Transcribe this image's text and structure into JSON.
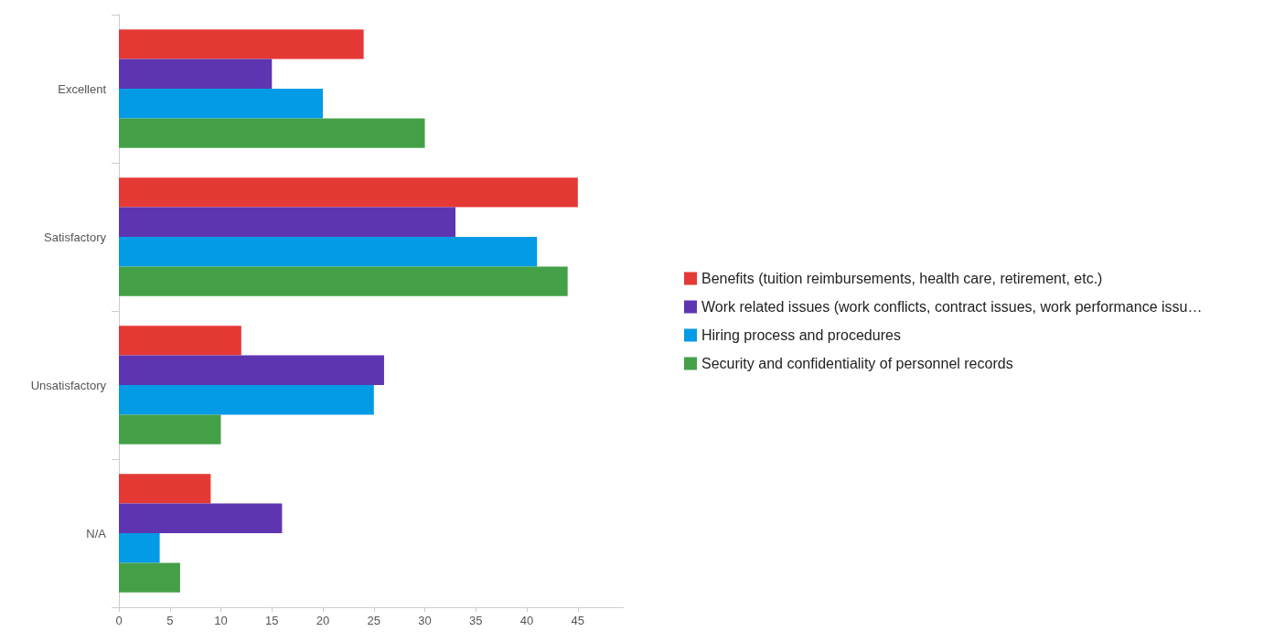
{
  "chart_data": {
    "type": "bar",
    "orientation": "horizontal",
    "categories": [
      "Excellent",
      "Satisfactory",
      "Unsatisfactory",
      "N/A"
    ],
    "series": [
      {
        "name": "Benefits (tuition reimbursements, health care, retirement, etc.)",
        "color": "#e53935",
        "values": [
          24,
          45,
          12,
          9
        ]
      },
      {
        "name": "Work related issues (work conflicts, contract issues, work performance issu…",
        "color": "#5e35b1",
        "values": [
          15,
          33,
          26,
          16
        ]
      },
      {
        "name": "Hiring process and procedures",
        "color": "#039be5",
        "values": [
          20,
          41,
          25,
          4
        ]
      },
      {
        "name": "Security and confidentiality of personnel records",
        "color": "#43a047",
        "values": [
          30,
          44,
          10,
          6
        ]
      }
    ],
    "xlim": [
      0,
      49.5
    ],
    "xticks": [
      0,
      5,
      10,
      15,
      20,
      25,
      30,
      35,
      40,
      45
    ],
    "grid": false,
    "legend": "right"
  }
}
